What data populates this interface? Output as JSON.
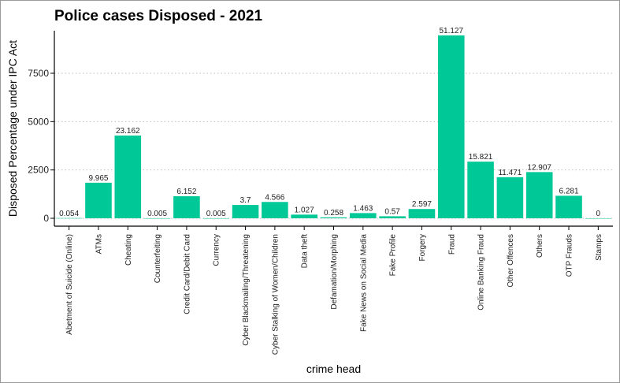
{
  "chart_data": {
    "type": "bar",
    "title": "Police cases Disposed  - 2021",
    "xlabel": "crime head",
    "ylabel": "Disposed Percentage under IPC Act",
    "bar_color": "#00c897",
    "ylim": [
      0,
      9700
    ],
    "yticks": [
      0,
      2500,
      5000,
      7500
    ],
    "grid": "horizontal dotted",
    "categories": [
      "Abetment of Suicide (Online)",
      "ATMs",
      "Cheating",
      "Counterfeiting",
      "Credit Card/Debit Card",
      "Currency",
      "Cyber Blackmailing/Threatening",
      "Cyber Stalking of Women/Children",
      "Data theft",
      "Defamation/Morphing",
      "Fake News on Social Media",
      "Fake Profile",
      "Forgery",
      "Fraud",
      "Online Banking Fraud",
      "Other Offences",
      "Others",
      "OTP Frauds",
      "Stamps"
    ],
    "values": [
      10,
      1840,
      4280,
      1,
      1140,
      1,
      690,
      845,
      190,
      48,
      270,
      105,
      480,
      9460,
      2930,
      2125,
      2390,
      1165,
      0
    ],
    "data_labels": [
      "0.054",
      "9.965",
      "23.162",
      "0.005",
      "6.152",
      "0.005",
      "3.7",
      "4.566",
      "1.027",
      "0.258",
      "1.463",
      "0.57",
      "2.597",
      "51.127",
      "15.821",
      "11.471",
      "12.907",
      "6.281",
      "0"
    ]
  }
}
